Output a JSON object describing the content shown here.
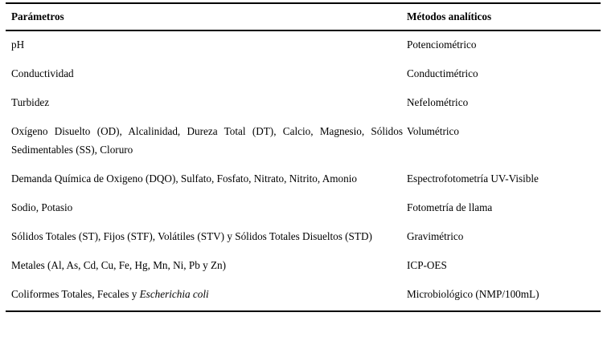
{
  "table": {
    "headers": {
      "param": "Parámetros",
      "method": "Métodos analíticos"
    },
    "rows": [
      {
        "param": "pH",
        "method": "Potenciométrico"
      },
      {
        "param": "Conductividad",
        "method": "Conductimétrico"
      },
      {
        "param": "Turbidez",
        "method": "Nefelométrico"
      },
      {
        "param": "Oxígeno Disuelto (OD), Alcalinidad, Dureza Total (DT), Calcio, Magnesio, Sólidos Sedimentables (SS), Cloruro",
        "method": "Volumétrico"
      },
      {
        "param": "Demanda Química de Oxigeno (DQO), Sulfato, Fosfato, Nitrato, Nitrito, Amonio",
        "method": "Espectrofotometría UV-Visible"
      },
      {
        "param": "Sodio, Potasio",
        "method": "Fotometría de llama"
      },
      {
        "param": "Sólidos Totales (ST), Fijos (STF), Volátiles (STV) y Sólidos Totales Disueltos (STD)",
        "method": "Gravimétrico"
      },
      {
        "param": "Metales (Al, As, Cd, Cu, Fe, Hg, Mn, Ni, Pb y Zn)",
        "method": "ICP-OES"
      },
      {
        "param_prefix": "Coliformes Totales, Fecales y ",
        "param_italic": "Escherichia coli",
        "method": "Microbiológico (NMP/100mL)"
      }
    ],
    "colors": {
      "text": "#000000",
      "rule": "#000000",
      "background": "#ffffff"
    }
  }
}
